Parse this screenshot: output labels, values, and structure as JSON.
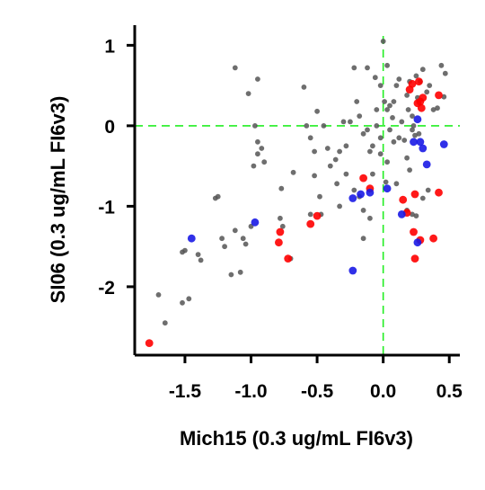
{
  "chart_data": {
    "type": "scatter",
    "xlabel": "Mich15 (0.3 ug/mL FI6v3)",
    "ylabel": "SI06 (0.3 ug/mL FI6v3)",
    "xlim": [
      -1.88,
      0.58
    ],
    "ylim": [
      -2.85,
      1.25
    ],
    "xticks": [
      -1.5,
      -1.0,
      -0.5,
      0.0,
      0.5
    ],
    "xtick_labels": [
      "-1.5",
      "-1.0",
      "-0.5",
      "0.0",
      "0.5"
    ],
    "yticks": [
      -2,
      -1,
      0,
      1
    ],
    "ytick_labels": [
      "-2",
      "-1",
      "0",
      "1"
    ],
    "grid": false,
    "legend": "none",
    "reference_lines": {
      "x": 0,
      "y": 0,
      "color": "#22ee22",
      "style": "dashed"
    },
    "series": [
      {
        "color": "#555555",
        "points": [
          [
            -1.7,
            -2.1
          ],
          [
            -1.65,
            -2.45
          ],
          [
            -1.52,
            -2.2
          ],
          [
            -1.47,
            -2.15
          ],
          [
            -1.52,
            -1.57
          ],
          [
            -1.5,
            -1.55
          ],
          [
            -1.4,
            -1.6
          ],
          [
            -1.38,
            -1.67
          ],
          [
            -1.27,
            -0.9
          ],
          [
            -1.25,
            -0.88
          ],
          [
            -1.22,
            -1.4
          ],
          [
            -1.2,
            -1.5
          ],
          [
            -1.15,
            -1.85
          ],
          [
            -1.08,
            -1.82
          ],
          [
            -1.12,
            -1.3
          ],
          [
            -1.06,
            -1.4
          ],
          [
            -1.04,
            -1.47
          ],
          [
            -1.0,
            -1.25
          ],
          [
            -1.12,
            0.72
          ],
          [
            -0.97,
            0.0
          ],
          [
            -1.02,
            0.4
          ],
          [
            -0.95,
            0.58
          ],
          [
            -0.95,
            -0.2
          ],
          [
            -0.95,
            -0.35
          ],
          [
            -0.92,
            -0.28
          ],
          [
            -0.9,
            -0.45
          ],
          [
            -0.98,
            -0.5
          ],
          [
            -0.78,
            -1.15
          ],
          [
            -0.77,
            -0.78
          ],
          [
            -0.76,
            -1.25
          ],
          [
            -0.7,
            -1.65
          ],
          [
            -0.68,
            -0.58
          ],
          [
            -0.6,
            0.48
          ],
          [
            -0.58,
            0.0
          ],
          [
            -0.55,
            -0.15
          ],
          [
            -0.52,
            -0.32
          ],
          [
            -0.52,
            -0.62
          ],
          [
            -0.5,
            0.18
          ],
          [
            -0.48,
            -0.88
          ],
          [
            -0.47,
            -1.1
          ],
          [
            -0.45,
            0.0
          ],
          [
            -0.42,
            -0.28
          ],
          [
            -0.4,
            -0.5
          ],
          [
            -0.36,
            -0.42
          ],
          [
            -0.33,
            -0.32
          ],
          [
            -0.3,
            0.05
          ],
          [
            -0.28,
            -0.25
          ],
          [
            -0.25,
            0.05
          ],
          [
            -0.22,
            0.72
          ],
          [
            -0.2,
            0.3
          ],
          [
            -0.18,
            0.12
          ],
          [
            -0.15,
            -0.1
          ],
          [
            -0.12,
            -0.05
          ],
          [
            -0.22,
            -0.8
          ],
          [
            -0.18,
            -0.88
          ],
          [
            -0.15,
            -1.05
          ],
          [
            -0.1,
            -1.15
          ],
          [
            -0.15,
            -1.4
          ],
          [
            -0.12,
            0.72
          ],
          [
            -0.08,
            -0.25
          ],
          [
            -0.05,
            0.2
          ],
          [
            -0.02,
            0.5
          ],
          [
            -0.02,
            -0.15
          ],
          [
            -0.1,
            -0.32
          ],
          [
            -0.05,
            0.0
          ],
          [
            0.0,
            1.05
          ],
          [
            0.01,
            0.3
          ],
          [
            0.03,
            0.75
          ],
          [
            0.03,
            0.2
          ],
          [
            0.05,
            0.25
          ],
          [
            0.07,
            0.1
          ],
          [
            0.1,
            0.5
          ],
          [
            0.12,
            0.58
          ],
          [
            0.14,
            0.05
          ],
          [
            0.16,
            -0.18
          ],
          [
            0.18,
            0.38
          ],
          [
            0.19,
            0.2
          ],
          [
            0.2,
            0.55
          ],
          [
            0.22,
            0.12
          ],
          [
            0.23,
            0.0
          ],
          [
            0.24,
            -0.12
          ],
          [
            0.25,
            0.62
          ],
          [
            0.26,
            0.35
          ],
          [
            0.28,
            0.55
          ],
          [
            0.3,
            0.7
          ],
          [
            0.33,
            0.42
          ],
          [
            0.35,
            0.5
          ],
          [
            0.38,
            0.2
          ],
          [
            0.41,
            0.22
          ],
          [
            0.44,
            0.75
          ],
          [
            0.47,
            0.65
          ],
          [
            0.46,
            0.36
          ],
          [
            0.05,
            -0.05
          ],
          [
            0.08,
            -0.2
          ],
          [
            0.12,
            -0.15
          ],
          [
            0.18,
            -0.4
          ],
          [
            0.2,
            -0.55
          ],
          [
            0.22,
            -0.05
          ],
          [
            0.27,
            -0.1
          ],
          [
            -0.28,
            -0.6
          ],
          [
            -0.35,
            -0.72
          ],
          [
            -0.08,
            -0.6
          ],
          [
            0.02,
            -0.7
          ],
          [
            0.1,
            -0.72
          ],
          [
            0.18,
            -1.05
          ],
          [
            0.22,
            -1.1
          ],
          [
            0.25,
            -1.12
          ],
          [
            0.3,
            -0.9
          ],
          [
            0.34,
            -0.8
          ],
          [
            -0.55,
            -1.1
          ],
          [
            -0.33,
            -1.0
          ],
          [
            -0.02,
            -0.35
          ],
          [
            0.03,
            -0.45
          ],
          [
            -0.06,
            0.6
          ],
          [
            0.08,
            0.3
          ]
        ]
      },
      {
        "color": "#ff0000",
        "points": [
          [
            -1.77,
            -2.7
          ],
          [
            -0.78,
            -1.32
          ],
          [
            -0.79,
            -1.45
          ],
          [
            -0.72,
            -1.65
          ],
          [
            -0.55,
            -1.22
          ],
          [
            -0.5,
            -1.12
          ],
          [
            -0.15,
            -0.65
          ],
          [
            -0.1,
            -0.78
          ],
          [
            0.15,
            -0.92
          ],
          [
            0.18,
            -1.08
          ],
          [
            0.23,
            -1.32
          ],
          [
            0.28,
            -1.42
          ],
          [
            0.38,
            -1.4
          ],
          [
            0.24,
            -1.65
          ],
          [
            0.42,
            -0.83
          ],
          [
            0.42,
            0.38
          ],
          [
            0.26,
            0.28
          ],
          [
            0.28,
            0.3
          ],
          [
            0.29,
            0.22
          ],
          [
            0.22,
            0.52
          ],
          [
            0.27,
            0.55
          ],
          [
            0.2,
            0.45
          ],
          [
            0.3,
            0.35
          ],
          [
            0.24,
            -0.85
          ]
        ]
      },
      {
        "color": "#1a1ae6",
        "points": [
          [
            -1.45,
            -1.4
          ],
          [
            -0.97,
            -1.2
          ],
          [
            -0.23,
            -1.8
          ],
          [
            -0.23,
            -0.9
          ],
          [
            -0.17,
            -0.85
          ],
          [
            -0.1,
            -0.83
          ],
          [
            0.03,
            -0.78
          ],
          [
            0.14,
            -1.1
          ],
          [
            0.26,
            -1.45
          ],
          [
            0.26,
            0.08
          ],
          [
            0.28,
            -0.2
          ],
          [
            0.33,
            -0.48
          ],
          [
            0.23,
            -0.2
          ],
          [
            0.46,
            -0.23
          ],
          [
            0.3,
            -0.28
          ]
        ]
      }
    ]
  }
}
